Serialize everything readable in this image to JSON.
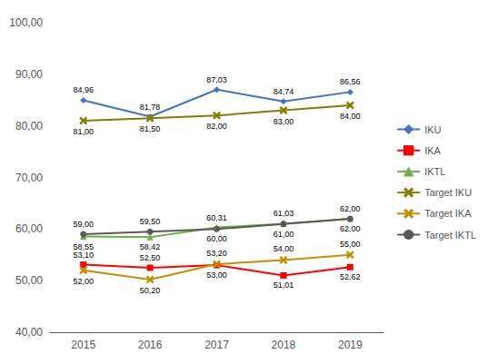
{
  "chart_data": {
    "type": "line",
    "categories": [
      "2015",
      "2016",
      "2017",
      "2018",
      "2019"
    ],
    "series": [
      {
        "name": "IKU",
        "color": "#4472C4",
        "marker": "diamond",
        "values": [
          84.96,
          81.78,
          87.03,
          84.74,
          86.56
        ],
        "value_labels": [
          "84,96",
          "81,78",
          "87,03",
          "84,74",
          "86,56"
        ]
      },
      {
        "name": "IKA",
        "color": "#FF0000",
        "marker": "square",
        "values": [
          53.1,
          52.5,
          53.0,
          51.01,
          52.62
        ],
        "value_labels": [
          "53,10",
          "52,50",
          "53,00",
          "51,01",
          "52,62"
        ]
      },
      {
        "name": "IKTL",
        "color": "#70AD47",
        "marker": "triangle",
        "values": [
          58.55,
          58.42,
          60.31,
          61.03,
          62.0
        ],
        "value_labels": [
          "58,55",
          "58,42",
          "60,31",
          "61,03",
          "62,00"
        ]
      },
      {
        "name": "Target IKU",
        "color": "#7F7F00",
        "marker": "x",
        "values": [
          81.0,
          81.5,
          82.0,
          83.0,
          84.0
        ],
        "value_labels": [
          "81,00",
          "81,50",
          "82,00",
          "83,00",
          "84,00"
        ]
      },
      {
        "name": "Target IKA",
        "color": "#C09000",
        "marker": "x",
        "values": [
          52.0,
          50.2,
          53.2,
          54.0,
          55.0
        ],
        "value_labels": [
          "52,00",
          "50,20",
          "53,20",
          "54,00",
          "55,00"
        ]
      },
      {
        "name": "Target IKTL",
        "color": "#595959",
        "marker": "circle",
        "values": [
          59.0,
          59.5,
          60.0,
          61.0,
          62.0
        ],
        "value_labels": [
          "59,00",
          "59,50",
          "60,00",
          "61,00",
          "62,00"
        ]
      }
    ],
    "ylim": [
      40,
      100
    ],
    "yticks": [
      {
        "value": 40,
        "label": "40,00"
      },
      {
        "value": 50,
        "label": "50,00"
      },
      {
        "value": 60,
        "label": "60,00"
      },
      {
        "value": 70,
        "label": "70,00"
      },
      {
        "value": 80,
        "label": "80,00"
      },
      {
        "value": 90,
        "label": "90,00"
      },
      {
        "value": 100,
        "label": "100,00"
      }
    ],
    "grid": false,
    "legend": "right",
    "data_labels": true
  }
}
